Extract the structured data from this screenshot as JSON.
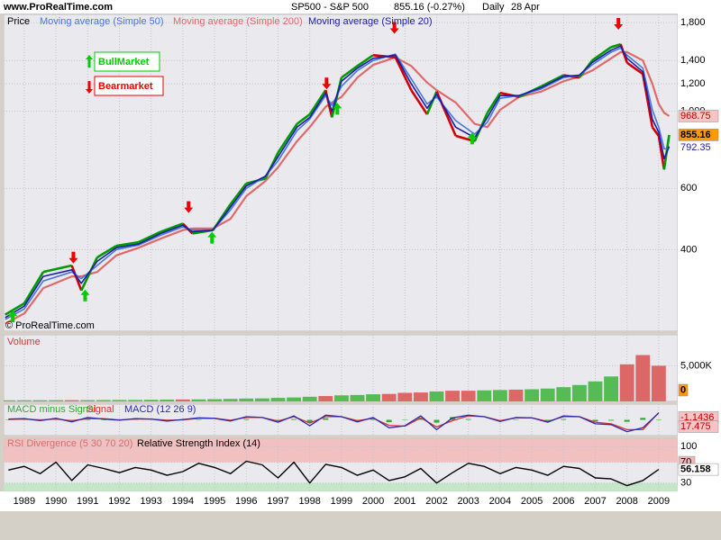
{
  "header": {
    "site": "www.ProRealTime.com",
    "title": "SP500 - S&P 500",
    "quote": "855.16 (-0.27%)",
    "period": "Daily",
    "date": "28 Apr"
  },
  "x_axis": {
    "xlim": [
      1988.35,
      2009.6
    ],
    "xticks": [
      1989,
      1990,
      1991,
      1992,
      1993,
      1994,
      1995,
      1996,
      1997,
      1998,
      1999,
      2000,
      2001,
      2002,
      2003,
      2004,
      2005,
      2006,
      2007,
      2008,
      2009
    ]
  },
  "chart_data": [
    {
      "type": "line",
      "title": "Price",
      "watermark": "© ProRealTime.com",
      "log_scale": true,
      "grid": true,
      "x": [
        1988.4,
        1989.0,
        1989.6,
        1990.5,
        1990.8,
        1991.3,
        1991.9,
        1992.6,
        1993.3,
        1994.0,
        1994.3,
        1994.95,
        1995.5,
        1996.0,
        1996.6,
        1997.0,
        1997.6,
        1998.0,
        1998.5,
        1998.7,
        1999.0,
        1999.5,
        2000.0,
        2000.7,
        2001.2,
        2001.7,
        2002.0,
        2002.6,
        2003.2,
        2003.6,
        2004.0,
        2004.6,
        2005.3,
        2006.0,
        2006.5,
        2006.9,
        2007.5,
        2007.8,
        2008.0,
        2008.5,
        2008.8,
        2009.0,
        2009.17,
        2009.33
      ],
      "ylim": [
        233,
        1900
      ],
      "yticks": [
        400,
        600,
        {
          "value": 1000,
          "label": "1,000"
        },
        {
          "value": 1200,
          "label": "1,200"
        },
        {
          "value": 1400,
          "label": "1,400"
        },
        {
          "value": 1800,
          "label": "1,800"
        }
      ],
      "price": {
        "color": "#d40000",
        "up_color": "#009a00",
        "label_box": "#ff9900",
        "last_label": true,
        "values": [
          260,
          280,
          345,
          360,
          305,
          380,
          410,
          420,
          450,
          475,
          445,
          455,
          540,
          620,
          640,
          760,
          920,
          980,
          1150,
          960,
          1250,
          1350,
          1450,
          1430,
          1150,
          980,
          1140,
          850,
          820,
          990,
          1130,
          1100,
          1180,
          1270,
          1250,
          1400,
          1530,
          1560,
          1380,
          1280,
          900,
          850,
          680,
          855.16
        ]
      },
      "series": [
        {
          "name": "Moving average (Simple 200)",
          "color": "#e06a6a",
          "label_box": "#f6c4c4",
          "last_label": true,
          "values": [
            245,
            262,
            310,
            335,
            335,
            345,
            385,
            405,
            430,
            455,
            460,
            460,
            490,
            570,
            630,
            690,
            820,
            900,
            1030,
            1060,
            1100,
            1250,
            1360,
            1430,
            1350,
            1210,
            1150,
            1060,
            920,
            900,
            1010,
            1100,
            1140,
            1220,
            1260,
            1310,
            1420,
            1480,
            1480,
            1400,
            1200,
            1050,
            990,
            968.75
          ]
        },
        {
          "name": "Moving average (Simple 50)",
          "color": "#4a78d8",
          "last_label": false,
          "values": [
            252,
            270,
            325,
            345,
            330,
            360,
            400,
            412,
            440,
            465,
            455,
            455,
            520,
            600,
            650,
            720,
            880,
            950,
            1110,
            1040,
            1180,
            1310,
            1400,
            1460,
            1240,
            1050,
            1100,
            940,
            860,
            930,
            1090,
            1110,
            1160,
            1250,
            1270,
            1360,
            1480,
            1520,
            1450,
            1330,
            1010,
            900,
            780,
            780
          ]
        },
        {
          "name": "Moving average (Simple 20)",
          "color": "#1c1caa",
          "last_label": true,
          "values": [
            255,
            275,
            335,
            350,
            320,
            370,
            405,
            415,
            445,
            470,
            450,
            455,
            530,
            610,
            650,
            740,
            900,
            960,
            1130,
            1000,
            1220,
            1330,
            1420,
            1450,
            1200,
            1020,
            1120,
            900,
            840,
            960,
            1110,
            1110,
            1170,
            1260,
            1270,
            1380,
            1500,
            1540,
            1420,
            1300,
            950,
            870,
            730,
            792.35
          ]
        }
      ],
      "annotations": [
        {
          "label": "BullMarket",
          "color": "#00cc00",
          "direction": "up",
          "x": [
            1988.64,
            1990.92,
            1994.92,
            1998.87,
            2003.12
          ],
          "y": [
            267,
            307,
            450,
            1057,
            868
          ]
        },
        {
          "label": "Bearmarket",
          "color": "#ee0000",
          "direction": "down",
          "x": [
            1990.55,
            1994.18,
            1998.53,
            2000.67,
            2007.73
          ],
          "y": [
            365,
            510,
            1157,
            1672,
            1717
          ]
        }
      ]
    },
    {
      "type": "bar",
      "title": "Volume",
      "grid": true,
      "up_color": "#55bb55",
      "down_color": "#dd6666",
      "last_value": 0,
      "last_box": "#ff9900",
      "x": [
        1988.5,
        1989.0,
        1989.5,
        1990.0,
        1990.5,
        1991.0,
        1991.5,
        1992.0,
        1992.5,
        1993.0,
        1993.5,
        1994.0,
        1994.5,
        1995.0,
        1995.5,
        1996.0,
        1996.5,
        1997.0,
        1997.5,
        1998.0,
        1998.5,
        1999.0,
        1999.5,
        2000.0,
        2000.5,
        2001.0,
        2001.5,
        2002.0,
        2002.5,
        2003.0,
        2003.5,
        2004.0,
        2004.5,
        2005.0,
        2005.5,
        2006.0,
        2006.5,
        2007.0,
        2007.5,
        2008.0,
        2008.5,
        2009.0
      ],
      "ylim": [
        0,
        9342
      ],
      "yticks": [
        {
          "value": 5000,
          "label": "5,000K"
        }
      ],
      "values": [
        150,
        160,
        165,
        170,
        175,
        180,
        190,
        200,
        205,
        230,
        250,
        270,
        280,
        310,
        350,
        400,
        420,
        500,
        550,
        650,
        750,
        850,
        900,
        1000,
        1050,
        1200,
        1250,
        1400,
        1500,
        1500,
        1550,
        1600,
        1650,
        1700,
        1800,
        2000,
        2300,
        2800,
        3500,
        5200,
        6500,
        5000
      ]
    },
    {
      "type": "macd",
      "grid": true,
      "x": [
        1988.5,
        1989.0,
        1989.5,
        1990.0,
        1990.5,
        1991.0,
        1991.5,
        1992.0,
        1992.5,
        1993.0,
        1993.5,
        1994.0,
        1994.5,
        1995.0,
        1995.5,
        1996.0,
        1996.5,
        1997.0,
        1997.5,
        1998.0,
        1998.5,
        1999.0,
        1999.5,
        2000.0,
        2000.5,
        2001.0,
        2001.5,
        2002.0,
        2002.5,
        2003.0,
        2003.5,
        2004.0,
        2004.5,
        2005.0,
        2005.5,
        2006.0,
        2006.5,
        2007.0,
        2007.5,
        2008.0,
        2008.5,
        2009.0
      ],
      "ylim": [
        -40,
        40
      ],
      "series": [
        {
          "name": "MACD minus Signal",
          "color": "#33aa33",
          "style": "bar",
          "label_box": "#f6c4c4",
          "last_label": true,
          "values": [
            1,
            1,
            -2,
            2,
            -3,
            3,
            -1,
            -1,
            1,
            0,
            -2,
            1,
            1,
            0,
            -2,
            2,
            0,
            -3,
            2,
            -7,
            4,
            0,
            -3,
            2,
            -6,
            1,
            5,
            -7,
            7,
            2,
            0,
            -2,
            1,
            0,
            -2,
            2,
            0,
            -4,
            -2,
            -5,
            5,
            -1.1436
          ]
        },
        {
          "name": "Signal",
          "color": "#dd3333",
          "style": "line",
          "last_label": false,
          "values": [
            1,
            2,
            0,
            2,
            -2,
            3,
            3,
            0,
            2,
            2,
            -1,
            0,
            4,
            4,
            -1,
            6,
            6,
            -3,
            8,
            -8,
            8,
            8,
            -2,
            4,
            -14,
            -16,
            5,
            -18,
            -2,
            10,
            8,
            -2,
            5,
            5,
            -4,
            8,
            8,
            -6,
            -10,
            -25,
            -25,
            18.6
          ]
        },
        {
          "name": "MACD (12 26 9)",
          "color": "#2a2ab0",
          "style": "line",
          "label_box": "#f6c4c4",
          "last_label": true,
          "values": [
            2,
            3,
            -2,
            4,
            -5,
            6,
            2,
            -1,
            3,
            2,
            -3,
            1,
            5,
            4,
            -3,
            8,
            6,
            -6,
            10,
            -15,
            12,
            8,
            -5,
            6,
            -20,
            -15,
            10,
            -25,
            5,
            12,
            8,
            -4,
            6,
            5,
            -6,
            10,
            8,
            -10,
            -12,
            -30,
            -20,
            17.475
          ]
        }
      ]
    },
    {
      "type": "rsi",
      "title": "RSI Divergence (5 30 70 20)",
      "title_color": "#d07070",
      "grid": true,
      "x": [
        1988.5,
        1989.0,
        1989.5,
        1990.0,
        1990.5,
        1991.0,
        1991.5,
        1992.0,
        1992.5,
        1993.0,
        1993.5,
        1994.0,
        1994.5,
        1995.0,
        1995.5,
        1996.0,
        1996.5,
        1997.0,
        1997.5,
        1998.0,
        1998.5,
        1999.0,
        1999.5,
        2000.0,
        2000.5,
        2001.0,
        2001.5,
        2002.0,
        2002.5,
        2003.0,
        2003.5,
        2004.0,
        2004.5,
        2005.0,
        2005.5,
        2006.0,
        2006.5,
        2007.0,
        2007.5,
        2008.0,
        2008.5,
        2009.0
      ],
      "ylim": [
        14,
        116
      ],
      "yticks": [
        30,
        70,
        100
      ],
      "bands": [
        {
          "from": 70,
          "to": 116,
          "color": "#f2b8b8"
        },
        {
          "from": 14,
          "to": 30,
          "color": "#bfe6bf"
        }
      ],
      "series": [
        {
          "name": "Relative Strength Index (14)",
          "color": "#000000",
          "label_box": "#ffffff",
          "last_label": true,
          "values": [
            55,
            62,
            48,
            70,
            35,
            65,
            58,
            50,
            60,
            55,
            45,
            52,
            68,
            60,
            48,
            72,
            65,
            40,
            70,
            30,
            66,
            60,
            45,
            55,
            35,
            42,
            58,
            30,
            50,
            68,
            62,
            48,
            60,
            55,
            45,
            62,
            58,
            40,
            38,
            25,
            35,
            56.158
          ]
        }
      ]
    }
  ]
}
